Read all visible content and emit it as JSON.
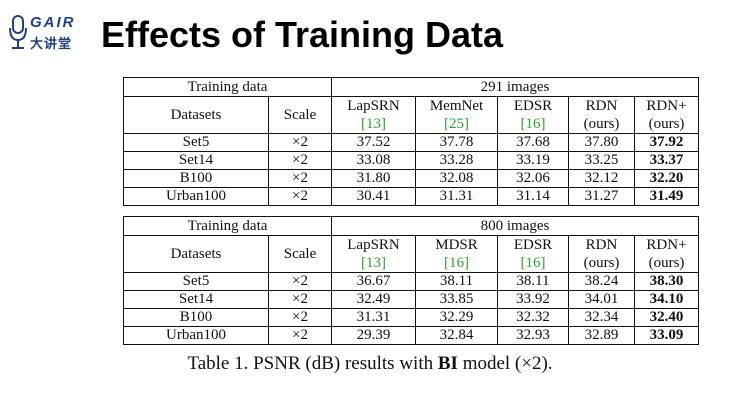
{
  "logo": {
    "brand": "GAIR",
    "sub": "大讲堂"
  },
  "slide": {
    "title": "Effects of Training Data"
  },
  "tables": [
    {
      "training_label": "Training data",
      "training_value": "291 images",
      "col_datasets": "Datasets",
      "col_scale": "Scale",
      "methods": [
        {
          "name": "LapSRN",
          "note": "[13]"
        },
        {
          "name": "MemNet",
          "note": "[25]"
        },
        {
          "name": "EDSR",
          "note": "[16]"
        },
        {
          "name": "RDN",
          "note": "(ours)"
        },
        {
          "name": "RDN+",
          "note": "(ours)"
        }
      ],
      "rows": [
        {
          "dataset": "Set5",
          "scale": "×2",
          "values": [
            "37.52",
            "37.78",
            "37.68",
            "37.80",
            "37.92"
          ]
        },
        {
          "dataset": "Set14",
          "scale": "×2",
          "values": [
            "33.08",
            "33.28",
            "33.19",
            "33.25",
            "33.37"
          ]
        },
        {
          "dataset": "B100",
          "scale": "×2",
          "values": [
            "31.80",
            "32.08",
            "32.06",
            "32.12",
            "32.20"
          ]
        },
        {
          "dataset": "Urban100",
          "scale": "×2",
          "values": [
            "30.41",
            "31.31",
            "31.14",
            "31.27",
            "31.49"
          ]
        }
      ]
    },
    {
      "training_label": "Training data",
      "training_value": "800 images",
      "col_datasets": "Datasets",
      "col_scale": "Scale",
      "methods": [
        {
          "name": "LapSRN",
          "note": "[13]"
        },
        {
          "name": "MDSR",
          "note": "[16]"
        },
        {
          "name": "EDSR",
          "note": "[16]"
        },
        {
          "name": "RDN",
          "note": "(ours)"
        },
        {
          "name": "RDN+",
          "note": "(ours)"
        }
      ],
      "rows": [
        {
          "dataset": "Set5",
          "scale": "×2",
          "values": [
            "36.67",
            "38.11",
            "38.11",
            "38.24",
            "38.30"
          ]
        },
        {
          "dataset": "Set14",
          "scale": "×2",
          "values": [
            "32.49",
            "33.85",
            "33.92",
            "34.01",
            "34.10"
          ]
        },
        {
          "dataset": "B100",
          "scale": "×2",
          "values": [
            "31.31",
            "32.29",
            "32.32",
            "32.34",
            "32.40"
          ]
        },
        {
          "dataset": "Urban100",
          "scale": "×2",
          "values": [
            "29.39",
            "32.84",
            "32.93",
            "32.89",
            "33.09"
          ]
        }
      ]
    }
  ],
  "caption": {
    "prefix": "Table 1. PSNR (dB) results with ",
    "bold": "BI",
    "suffix": " model (×2)."
  },
  "colors": {
    "logo": "#1f3f86",
    "citation": "#2ca02c",
    "text": "#111111"
  }
}
